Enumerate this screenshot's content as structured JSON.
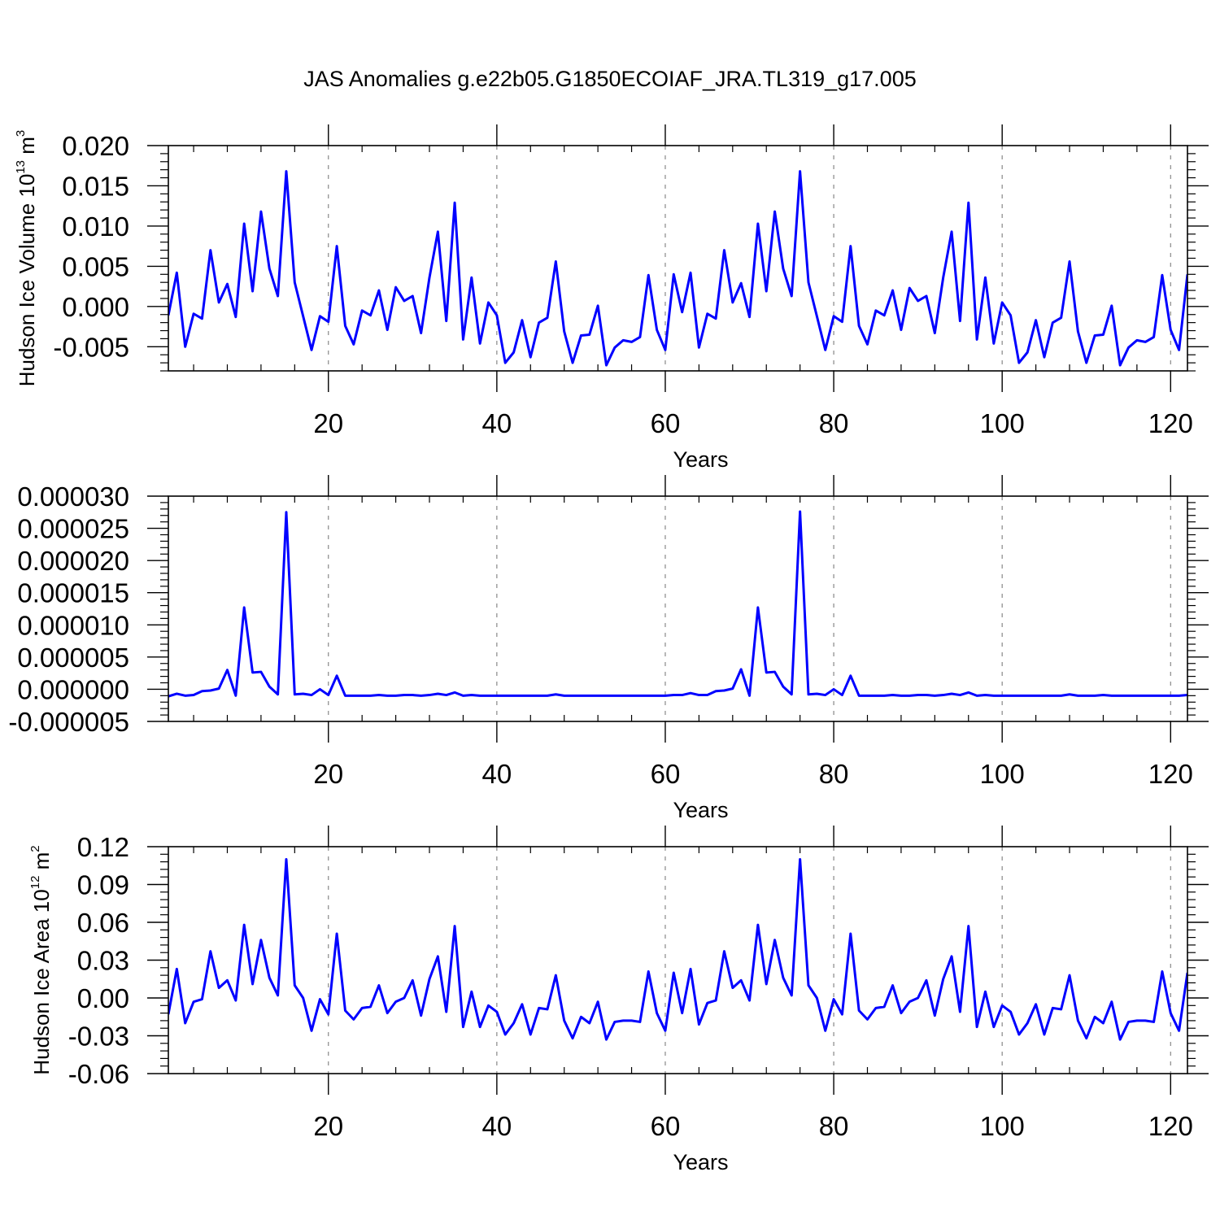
{
  "title": "JAS Anomalies g.e22b05.G1850ECOIAF_JRA.TL319_g17.005",
  "line_color": "#0000ff",
  "grid_color": "#888888",
  "chart_data": [
    {
      "type": "line",
      "ylabel": {
        "text": "Hudson Ice Volume 10",
        "sup": "13",
        "unit": " m",
        "unit_sup": "3"
      },
      "xlabel": "Years",
      "xlim": [
        1,
        122
      ],
      "ylim": [
        -0.008,
        0.02
      ],
      "yticks": [
        0.02,
        0.015,
        0.01,
        0.005,
        0.0,
        -0.005
      ],
      "ytick_labels": [
        "0.020",
        "0.015",
        "0.010",
        "0.005",
        "0.000",
        "-0.005"
      ],
      "xticks": [
        20,
        40,
        60,
        80,
        100,
        120
      ],
      "xtick_labels": [
        "20",
        "40",
        "60",
        "80",
        "100",
        "120"
      ],
      "grid_x": true,
      "x_start": 1,
      "values": [
        -0.0011,
        0.0042,
        -0.005,
        -0.0009,
        -0.0015,
        0.007,
        0.0005,
        0.0028,
        -0.0013,
        0.0103,
        0.0019,
        0.0118,
        0.0047,
        0.0013,
        0.0168,
        0.003,
        -0.0012,
        -0.0054,
        -0.0012,
        -0.0019,
        0.0075,
        -0.0024,
        -0.0047,
        -0.0005,
        -0.0011,
        0.002,
        -0.0029,
        0.0024,
        0.0007,
        0.0013,
        -0.0033,
        0.0036,
        0.0093,
        -0.0018,
        0.0129,
        -0.0041,
        0.0036,
        -0.0046,
        0.0005,
        -0.0011,
        -0.007,
        -0.0057,
        -0.0017,
        -0.0063,
        -0.002,
        -0.0014,
        0.0056,
        -0.0031,
        -0.007,
        -0.0036,
        -0.0035,
        0.0001,
        -0.0073,
        -0.0051,
        -0.0042,
        -0.0044,
        -0.0038,
        0.0039,
        -0.0029,
        -0.0054,
        0.004,
        -0.0007,
        0.0042,
        -0.0051,
        -0.0009,
        -0.0015,
        0.007,
        0.0005,
        0.0029,
        -0.0013,
        0.0103,
        0.0019,
        0.0118,
        0.0047,
        0.0013,
        0.0168,
        0.003,
        -0.0012,
        -0.0054,
        -0.0012,
        -0.0019,
        0.0075,
        -0.0024,
        -0.0047,
        -0.0005,
        -0.0011,
        0.002,
        -0.0029,
        0.0023,
        0.0007,
        0.0013,
        -0.0033,
        0.0036,
        0.0093,
        -0.0018,
        0.0129,
        -0.0041,
        0.0036,
        -0.0046,
        0.0005,
        -0.0011,
        -0.007,
        -0.0057,
        -0.0017,
        -0.0063,
        -0.002,
        -0.0014,
        0.0056,
        -0.0031,
        -0.007,
        -0.0036,
        -0.0035,
        0.0001,
        -0.0073,
        -0.0051,
        -0.0042,
        -0.0044,
        -0.0038,
        0.0039,
        -0.0029,
        -0.0054,
        0.004
      ]
    },
    {
      "type": "line",
      "ylabel": null,
      "xlabel": "Years",
      "xlim": [
        1,
        122
      ],
      "ylim": [
        -5e-06,
        3e-05
      ],
      "yticks": [
        3e-05,
        2.5e-05,
        2e-05,
        1.5e-05,
        1e-05,
        5e-06,
        0.0,
        -5e-06
      ],
      "ytick_labels": [
        "0.000030",
        "0.000025",
        "0.000020",
        "0.000015",
        "0.000010",
        "0.000005",
        "0.000000",
        "-0.000005"
      ],
      "xticks": [
        20,
        40,
        60,
        80,
        100,
        120
      ],
      "xtick_labels": [
        "20",
        "40",
        "60",
        "80",
        "100",
        "120"
      ],
      "grid_x": true,
      "x_start": 1,
      "values": [
        -1.1e-06,
        -7e-07,
        -1e-06,
        -9e-07,
        -3e-07,
        -2e-07,
        1e-07,
        3e-06,
        -1e-06,
        1.27e-05,
        2.6e-06,
        2.7e-06,
        4e-07,
        -8e-07,
        2.75e-05,
        -8e-07,
        -7e-07,
        -9e-07,
        0.0,
        -9e-07,
        2.1e-06,
        -1e-06,
        -1e-06,
        -1e-06,
        -1e-06,
        -9e-07,
        -1e-06,
        -1e-06,
        -9e-07,
        -9e-07,
        -1e-06,
        -9e-07,
        -7e-07,
        -9e-07,
        -5e-07,
        -1e-06,
        -9e-07,
        -1e-06,
        -1e-06,
        -1e-06,
        -1e-06,
        -1e-06,
        -1e-06,
        -1e-06,
        -1e-06,
        -1e-06,
        -8e-07,
        -1e-06,
        -1e-06,
        -1e-06,
        -1e-06,
        -1e-06,
        -1e-06,
        -1e-06,
        -1e-06,
        -1e-06,
        -1e-06,
        -1e-06,
        -1e-06,
        -1e-06,
        -9e-07,
        -9e-07,
        -6e-07,
        -9e-07,
        -9e-07,
        -3e-07,
        -2e-07,
        1e-07,
        3.1e-06,
        -1e-06,
        1.27e-05,
        2.6e-06,
        2.7e-06,
        4e-07,
        -8e-07,
        2.76e-05,
        -8e-07,
        -7e-07,
        -9e-07,
        0.0,
        -9e-07,
        2.1e-06,
        -1e-06,
        -1e-06,
        -1e-06,
        -1e-06,
        -9e-07,
        -1e-06,
        -1e-06,
        -9e-07,
        -9e-07,
        -1e-06,
        -9e-07,
        -7e-07,
        -9e-07,
        -5e-07,
        -1e-06,
        -9e-07,
        -1e-06,
        -1e-06,
        -1e-06,
        -1e-06,
        -1e-06,
        -1e-06,
        -1e-06,
        -1e-06,
        -1e-06,
        -8e-07,
        -1e-06,
        -1e-06,
        -1e-06,
        -9e-07,
        -1e-06,
        -1e-06,
        -1e-06,
        -1e-06,
        -1e-06,
        -1e-06,
        -1e-06,
        -1e-06,
        -1e-06,
        -9e-07
      ]
    },
    {
      "type": "line",
      "ylabel": {
        "text": "Hudson Ice Area 10",
        "sup": "12",
        "unit": " m",
        "unit_sup": "2"
      },
      "xlabel": "Years",
      "xlim": [
        1,
        122
      ],
      "ylim": [
        -0.06,
        0.12
      ],
      "yticks": [
        0.12,
        0.09,
        0.06,
        0.03,
        0.0,
        -0.03,
        -0.06
      ],
      "ytick_labels": [
        "0.12",
        "0.09",
        "0.06",
        "0.03",
        "0.00",
        "-0.03",
        "-0.06"
      ],
      "xticks": [
        20,
        40,
        60,
        80,
        100,
        120
      ],
      "xtick_labels": [
        "20",
        "40",
        "60",
        "80",
        "100",
        "120"
      ],
      "grid_x": true,
      "x_start": 1,
      "values": [
        -0.013,
        0.023,
        -0.02,
        -0.003,
        -0.001,
        0.037,
        0.008,
        0.014,
        -0.002,
        0.058,
        0.011,
        0.046,
        0.016,
        0.002,
        0.11,
        0.01,
        0.0,
        -0.026,
        -0.001,
        -0.013,
        0.051,
        -0.01,
        -0.017,
        -0.008,
        -0.007,
        0.01,
        -0.012,
        -0.003,
        0.0,
        0.014,
        -0.014,
        0.015,
        0.033,
        -0.011,
        0.057,
        -0.023,
        0.005,
        -0.023,
        -0.006,
        -0.011,
        -0.029,
        -0.02,
        -0.005,
        -0.029,
        -0.008,
        -0.009,
        0.018,
        -0.018,
        -0.032,
        -0.015,
        -0.02,
        -0.003,
        -0.033,
        -0.019,
        -0.018,
        -0.018,
        -0.019,
        0.021,
        -0.012,
        -0.026,
        0.02,
        -0.012,
        0.023,
        -0.021,
        -0.004,
        -0.002,
        0.037,
        0.008,
        0.014,
        -0.002,
        0.058,
        0.011,
        0.046,
        0.016,
        0.002,
        0.11,
        0.01,
        0.0,
        -0.026,
        -0.001,
        -0.013,
        0.051,
        -0.01,
        -0.017,
        -0.008,
        -0.007,
        0.01,
        -0.012,
        -0.003,
        0.0,
        0.014,
        -0.014,
        0.015,
        0.033,
        -0.011,
        0.057,
        -0.023,
        0.005,
        -0.023,
        -0.006,
        -0.011,
        -0.029,
        -0.02,
        -0.005,
        -0.029,
        -0.008,
        -0.009,
        0.018,
        -0.018,
        -0.032,
        -0.015,
        -0.02,
        -0.003,
        -0.033,
        -0.019,
        -0.018,
        -0.018,
        -0.019,
        0.021,
        -0.012,
        -0.026,
        0.02
      ]
    }
  ]
}
